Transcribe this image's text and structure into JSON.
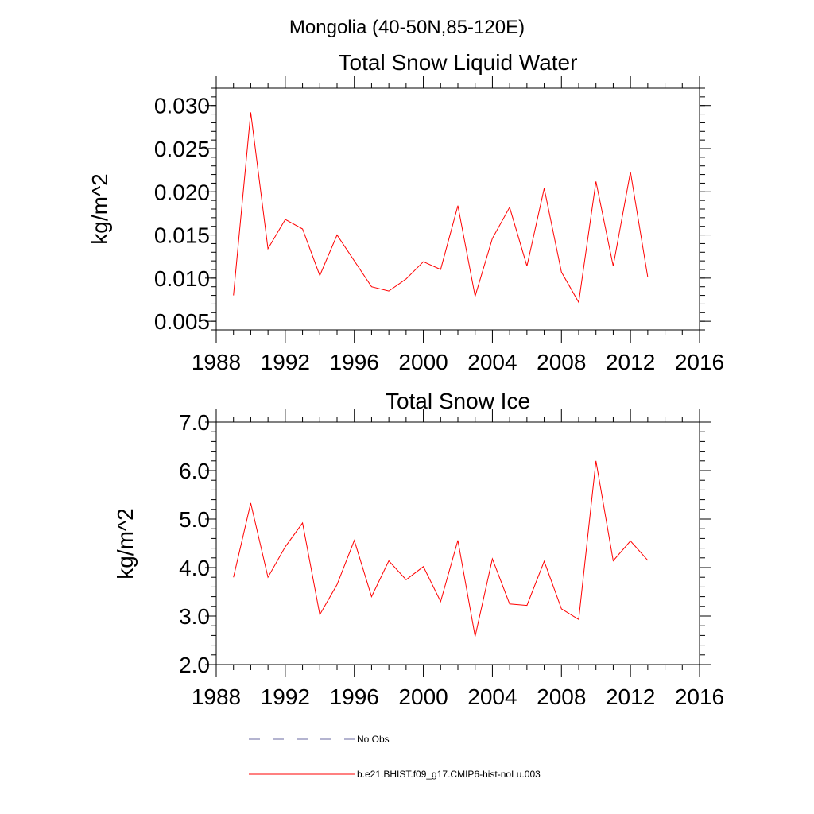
{
  "figure": {
    "title": "Mongolia (40-50N,85-120E)"
  },
  "chart_data": [
    {
      "type": "line",
      "title": "Total Snow Liquid Water",
      "xlabel": "",
      "ylabel": "kg/m^2",
      "xlim": [
        1988,
        2016
      ],
      "ylim": [
        0.004,
        0.032
      ],
      "x_ticks": [
        "1988",
        "1992",
        "1996",
        "2000",
        "2004",
        "2008",
        "2012",
        "2016"
      ],
      "y_ticks": [
        "0.005",
        "0.010",
        "0.015",
        "0.020",
        "0.025",
        "0.030"
      ],
      "y_tick_values": [
        0.005,
        0.01,
        0.015,
        0.02,
        0.025,
        0.03
      ],
      "grid": false,
      "series": [
        {
          "name": "b.e21.BHIST.f09_g17.CMIP6-hist-noLu.003",
          "color": "#ff0000",
          "x": [
            1989,
            1990,
            1991,
            1992,
            1993,
            1994,
            1995,
            1996,
            1997,
            1998,
            1999,
            2000,
            2001,
            2002,
            2003,
            2004,
            2005,
            2006,
            2007,
            2008,
            2009,
            2010,
            2011,
            2012,
            2013
          ],
          "values": [
            0.008,
            0.0292,
            0.0134,
            0.0168,
            0.0157,
            0.0103,
            0.015,
            0.012,
            0.009,
            0.0085,
            0.0099,
            0.0119,
            0.011,
            0.0184,
            0.0079,
            0.0146,
            0.0182,
            0.0114,
            0.0204,
            0.0107,
            0.0072,
            0.0212,
            0.0114,
            0.0223,
            0.0101
          ]
        }
      ]
    },
    {
      "type": "line",
      "title": "Total Snow Ice",
      "xlabel": "",
      "ylabel": "kg/m^2",
      "xlim": [
        1988,
        2016
      ],
      "ylim": [
        2.0,
        7.0
      ],
      "x_ticks": [
        "1988",
        "1992",
        "1996",
        "2000",
        "2004",
        "2008",
        "2012",
        "2016"
      ],
      "y_ticks": [
        "2.0",
        "3.0",
        "4.0",
        "5.0",
        "6.0",
        "7.0"
      ],
      "y_tick_values": [
        2.0,
        3.0,
        4.0,
        5.0,
        6.0,
        7.0
      ],
      "grid": false,
      "series": [
        {
          "name": "b.e21.BHIST.f09_g17.CMIP6-hist-noLu.003",
          "color": "#ff0000",
          "x": [
            1989,
            1990,
            1991,
            1992,
            1993,
            1994,
            1995,
            1996,
            1997,
            1998,
            1999,
            2000,
            2001,
            2002,
            2003,
            2004,
            2005,
            2006,
            2007,
            2008,
            2009,
            2010,
            2011,
            2012,
            2013
          ],
          "values": [
            3.8,
            5.33,
            3.8,
            4.43,
            4.92,
            3.03,
            3.65,
            4.56,
            3.4,
            4.14,
            3.75,
            4.02,
            3.3,
            4.56,
            2.58,
            4.18,
            3.25,
            3.22,
            4.13,
            3.15,
            2.93,
            6.2,
            4.14,
            4.55,
            4.15
          ]
        }
      ]
    }
  ],
  "legend": {
    "placement": "bottom",
    "items": [
      {
        "label": "No Obs",
        "color": "#6a6aa0",
        "style": "dashed"
      },
      {
        "label": "b.e21.BHIST.f09_g17.CMIP6-hist-noLu.003",
        "color": "#ff0000",
        "style": "solid"
      }
    ]
  }
}
